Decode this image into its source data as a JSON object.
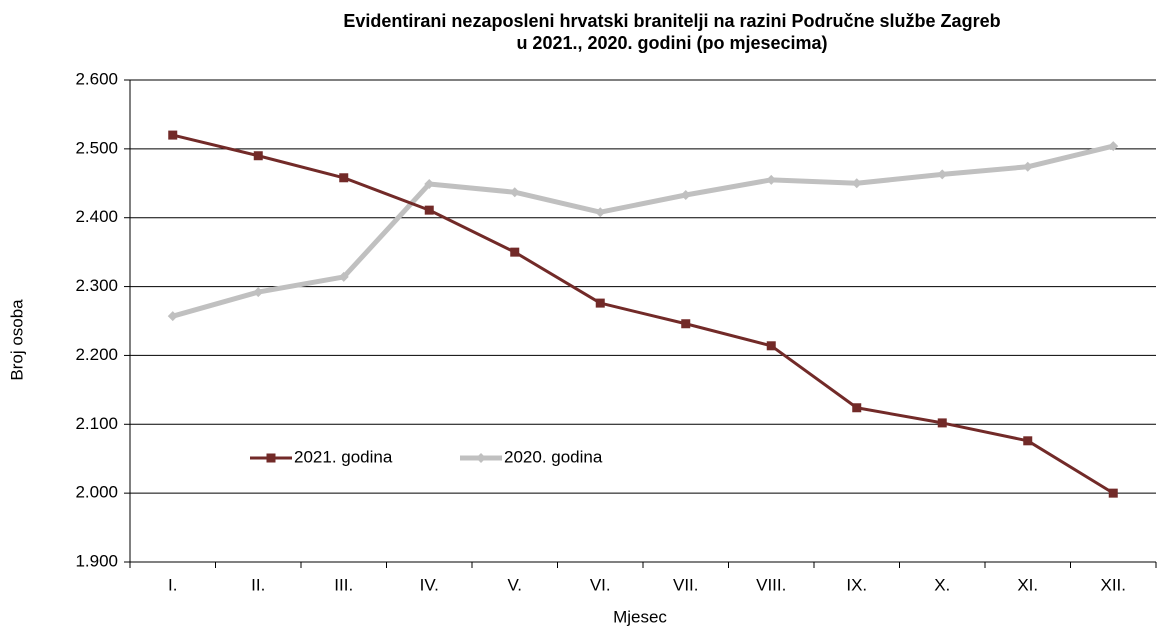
{
  "chart_data": {
    "type": "line",
    "title": [
      "Evidentirani nezaposleni hrvatski branitelji na razini Područne službe Zagreb",
      "u 2021., 2020. godini (po mjesecima)"
    ],
    "xlabel": "Mjesec",
    "ylabel": "Broj osoba",
    "categories": [
      "I.",
      "II.",
      "III.",
      "IV.",
      "V.",
      "VI.",
      "VII.",
      "VIII.",
      "IX.",
      "X.",
      "XI.",
      "XII."
    ],
    "series": [
      {
        "name": "2021. godina",
        "color": "#722a28",
        "marker": "square",
        "values": [
          2520,
          2490,
          2458,
          2411,
          2350,
          2276,
          2246,
          2214,
          2124,
          2102,
          2076,
          2000
        ]
      },
      {
        "name": "2020. godina",
        "color": "#c0c0c0",
        "marker": "diamond",
        "values": [
          2257,
          2292,
          2314,
          2449,
          2437,
          2408,
          2433,
          2455,
          2450,
          2463,
          2474,
          2504
        ]
      }
    ],
    "ylim": [
      1900,
      2600
    ],
    "yticks": [
      {
        "value": 1900,
        "label": "1.900"
      },
      {
        "value": 2000,
        "label": "2.000"
      },
      {
        "value": 2100,
        "label": "2.100"
      },
      {
        "value": 2200,
        "label": "2.200"
      },
      {
        "value": 2300,
        "label": "2.300"
      },
      {
        "value": 2400,
        "label": "2.400"
      },
      {
        "value": 2500,
        "label": "2.500"
      },
      {
        "value": 2600,
        "label": "2.600"
      }
    ],
    "grid": true
  }
}
